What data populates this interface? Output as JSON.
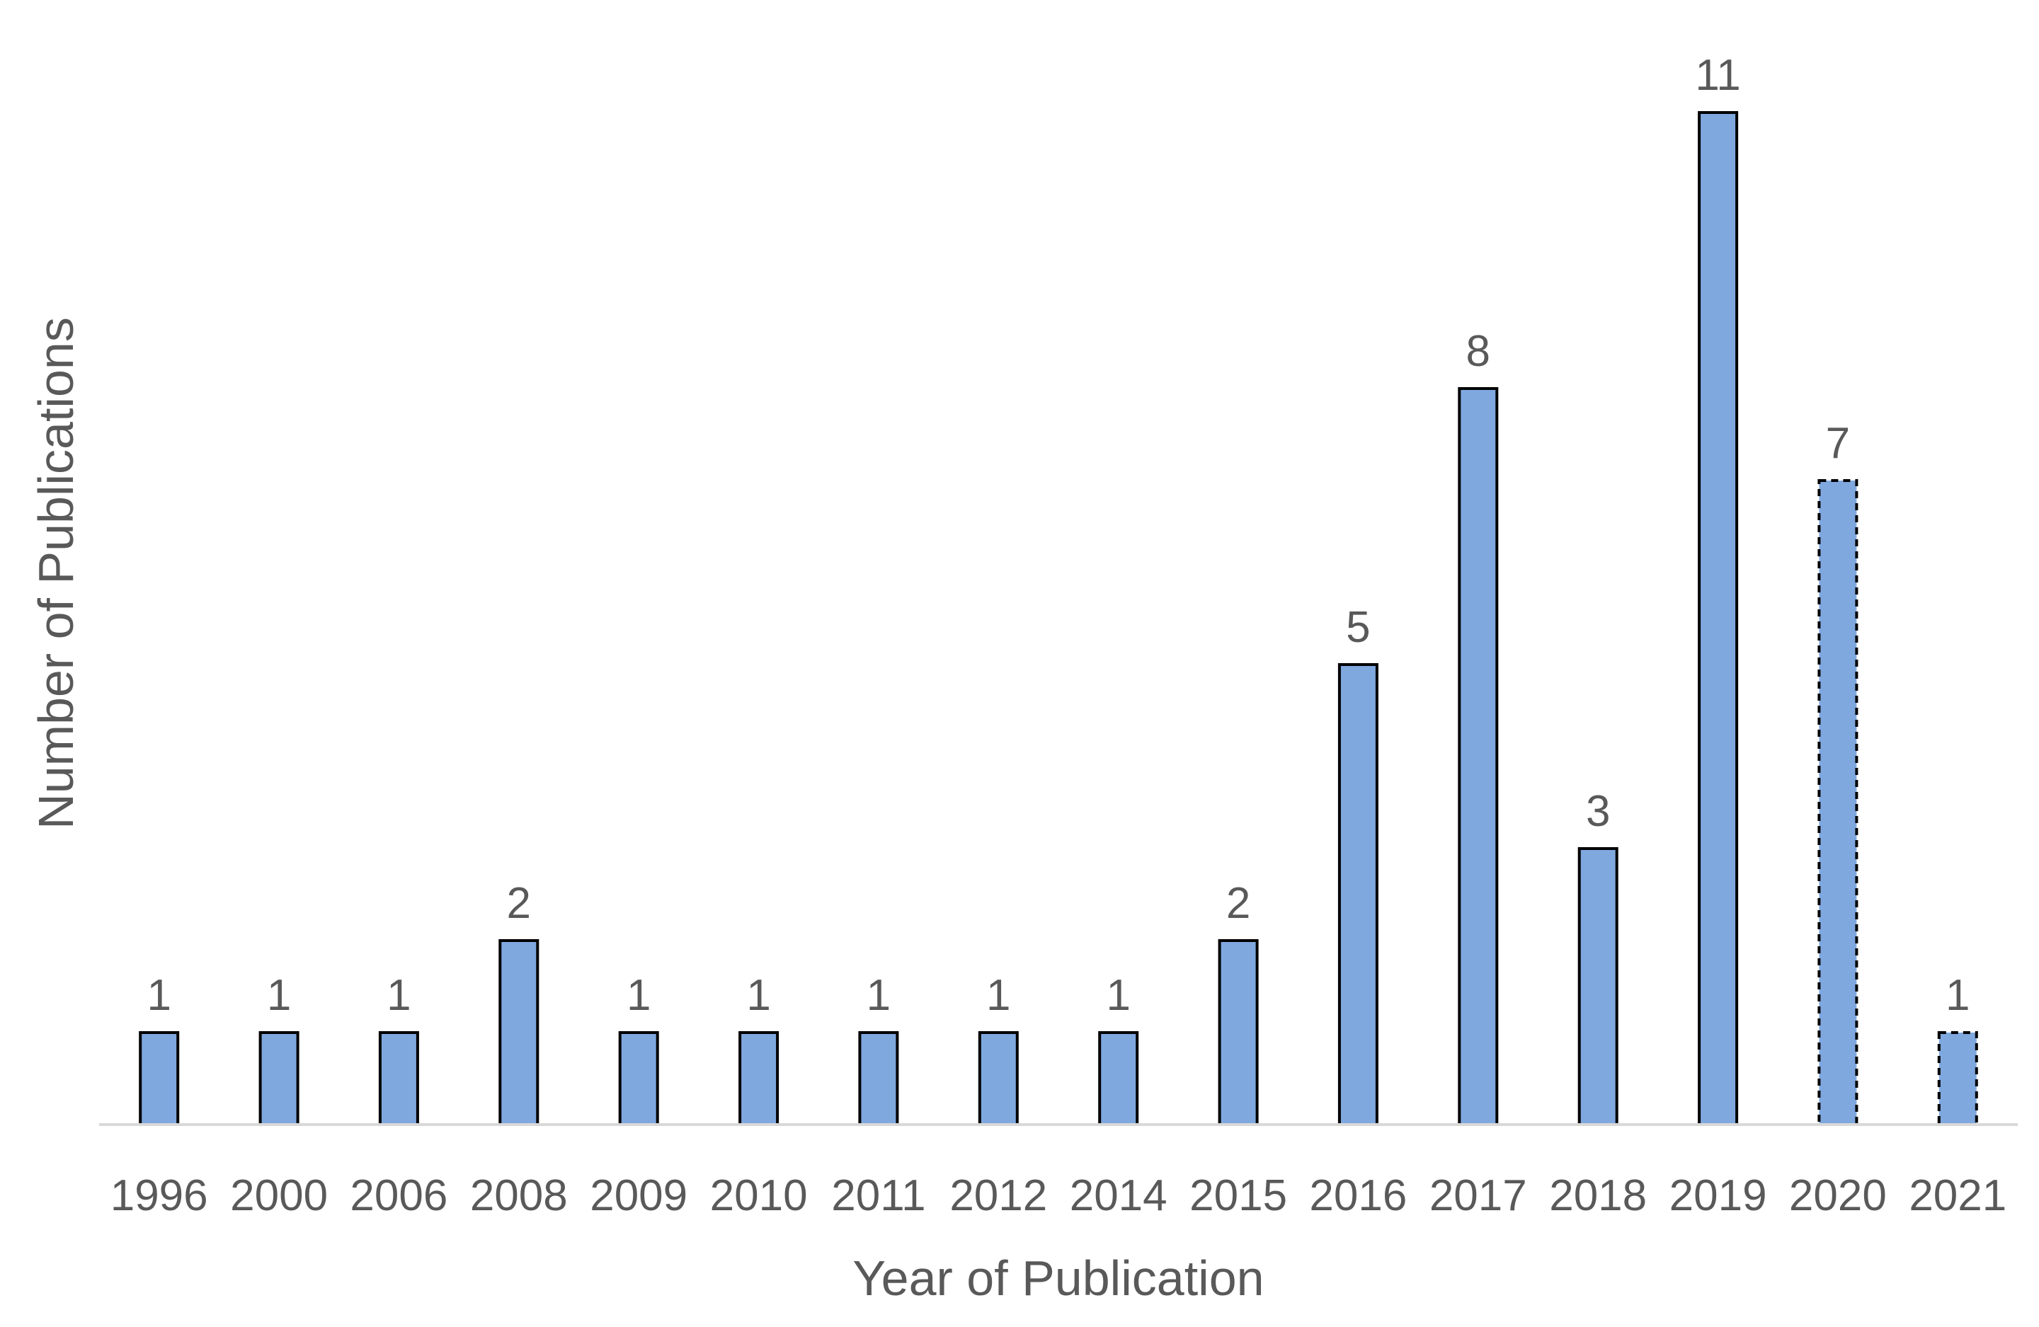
{
  "chart_data": {
    "type": "bar",
    "title": "",
    "xlabel": "Year of Publication",
    "ylabel": "Number of Publications",
    "categories": [
      "1996",
      "2000",
      "2006",
      "2008",
      "2009",
      "2010",
      "2011",
      "2012",
      "2014",
      "2015",
      "2016",
      "2017",
      "2018",
      "2019",
      "2020",
      "2021"
    ],
    "values": [
      1,
      1,
      1,
      2,
      1,
      1,
      1,
      1,
      1,
      2,
      5,
      8,
      3,
      11,
      7,
      1
    ],
    "dashed_outline": [
      false,
      false,
      false,
      false,
      false,
      false,
      false,
      false,
      false,
      false,
      false,
      false,
      false,
      false,
      true,
      true
    ],
    "ylim": [
      0,
      11
    ],
    "grid": false,
    "legend": "none",
    "data_labels": true,
    "colors": {
      "bar_fill": "#7FA8DF",
      "bar_stroke": "#000000",
      "axis_line": "#D9D9D9",
      "text": "#595959"
    }
  }
}
